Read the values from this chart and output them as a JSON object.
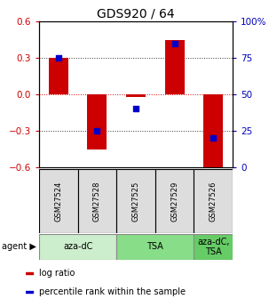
{
  "title": "GDS920 / 64",
  "samples": [
    "GSM27524",
    "GSM27528",
    "GSM27525",
    "GSM27529",
    "GSM27526"
  ],
  "log_ratio": [
    0.3,
    -0.45,
    -0.02,
    0.45,
    -0.62
  ],
  "percentile": [
    75,
    25,
    40,
    85,
    20
  ],
  "ylim_left": [
    -0.6,
    0.6
  ],
  "ylim_right": [
    0,
    100
  ],
  "yticks_left": [
    -0.6,
    -0.3,
    0.0,
    0.3,
    0.6
  ],
  "yticks_right": [
    0,
    25,
    50,
    75,
    100
  ],
  "ytick_labels_right": [
    "0",
    "25",
    "50",
    "75",
    "100%"
  ],
  "bar_color": "#cc0000",
  "dot_color": "#0000cc",
  "bar_width": 0.5,
  "group_spans": [
    {
      "label": "aza-dC",
      "start": 0,
      "end": 1,
      "color": "#cceecc"
    },
    {
      "label": "TSA",
      "start": 2,
      "end": 3,
      "color": "#88dd88"
    },
    {
      "label": "aza-dC,\nTSA",
      "start": 4,
      "end": 4,
      "color": "#66cc66"
    }
  ],
  "legend_items": [
    {
      "color": "#cc0000",
      "label": "log ratio"
    },
    {
      "color": "#0000cc",
      "label": "percentile rank within the sample"
    }
  ],
  "left_tick_color": "#cc0000",
  "right_tick_color": "#0000bb",
  "title_fontsize": 10,
  "tick_fontsize": 7.5,
  "sample_fontsize": 6,
  "agent_fontsize": 7,
  "legend_fontsize": 7
}
